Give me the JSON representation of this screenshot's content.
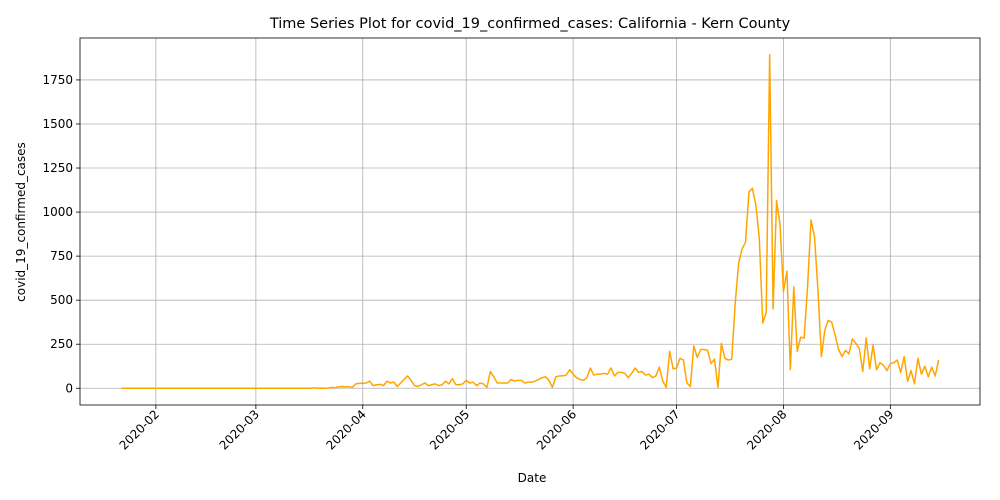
{
  "chart_data": {
    "type": "line",
    "title": "Time Series Plot for covid_19_confirmed_cases: California - Kern County",
    "x_label": "Date",
    "y_label": "covid_19_confirmed_cases",
    "x": [
      "2020-01-22",
      "2020-01-23",
      "2020-01-24",
      "2020-01-25",
      "2020-01-26",
      "2020-01-27",
      "2020-01-28",
      "2020-01-29",
      "2020-01-30",
      "2020-01-31",
      "2020-02-01",
      "2020-02-02",
      "2020-02-03",
      "2020-02-04",
      "2020-02-05",
      "2020-02-06",
      "2020-02-07",
      "2020-02-08",
      "2020-02-09",
      "2020-02-10",
      "2020-02-11",
      "2020-02-12",
      "2020-02-13",
      "2020-02-14",
      "2020-02-15",
      "2020-02-16",
      "2020-02-17",
      "2020-02-18",
      "2020-02-19",
      "2020-02-20",
      "2020-02-21",
      "2020-02-22",
      "2020-02-23",
      "2020-02-24",
      "2020-02-25",
      "2020-02-26",
      "2020-02-27",
      "2020-02-28",
      "2020-02-29",
      "2020-03-01",
      "2020-03-02",
      "2020-03-03",
      "2020-03-04",
      "2020-03-05",
      "2020-03-06",
      "2020-03-07",
      "2020-03-08",
      "2020-03-09",
      "2020-03-10",
      "2020-03-11",
      "2020-03-12",
      "2020-03-13",
      "2020-03-14",
      "2020-03-15",
      "2020-03-16",
      "2020-03-17",
      "2020-03-18",
      "2020-03-19",
      "2020-03-20",
      "2020-03-21",
      "2020-03-22",
      "2020-03-23",
      "2020-03-24",
      "2020-03-25",
      "2020-03-26",
      "2020-03-27",
      "2020-03-28",
      "2020-03-29",
      "2020-03-30",
      "2020-03-31",
      "2020-04-01",
      "2020-04-02",
      "2020-04-03",
      "2020-04-04",
      "2020-04-05",
      "2020-04-06",
      "2020-04-07",
      "2020-04-08",
      "2020-04-09",
      "2020-04-10",
      "2020-04-11",
      "2020-04-12",
      "2020-04-13",
      "2020-04-14",
      "2020-04-15",
      "2020-04-16",
      "2020-04-17",
      "2020-04-18",
      "2020-04-19",
      "2020-04-20",
      "2020-04-21",
      "2020-04-22",
      "2020-04-23",
      "2020-04-24",
      "2020-04-25",
      "2020-04-26",
      "2020-04-27",
      "2020-04-28",
      "2020-04-29",
      "2020-04-30",
      "2020-05-01",
      "2020-05-02",
      "2020-05-03",
      "2020-05-04",
      "2020-05-05",
      "2020-05-06",
      "2020-05-07",
      "2020-05-08",
      "2020-05-09",
      "2020-05-10",
      "2020-05-11",
      "2020-05-12",
      "2020-05-13",
      "2020-05-14",
      "2020-05-15",
      "2020-05-16",
      "2020-05-17",
      "2020-05-18",
      "2020-05-19",
      "2020-05-20",
      "2020-05-21",
      "2020-05-22",
      "2020-05-23",
      "2020-05-24",
      "2020-05-25",
      "2020-05-26",
      "2020-05-27",
      "2020-05-28",
      "2020-05-29",
      "2020-05-30",
      "2020-05-31",
      "2020-06-01",
      "2020-06-02",
      "2020-06-03",
      "2020-06-04",
      "2020-06-05",
      "2020-06-06",
      "2020-06-07",
      "2020-06-08",
      "2020-06-09",
      "2020-06-10",
      "2020-06-11",
      "2020-06-12",
      "2020-06-13",
      "2020-06-14",
      "2020-06-15",
      "2020-06-16",
      "2020-06-17",
      "2020-06-18",
      "2020-06-19",
      "2020-06-20",
      "2020-06-21",
      "2020-06-22",
      "2020-06-23",
      "2020-06-24",
      "2020-06-25",
      "2020-06-26",
      "2020-06-27",
      "2020-06-28",
      "2020-06-29",
      "2020-06-30",
      "2020-07-01",
      "2020-07-02",
      "2020-07-03",
      "2020-07-04",
      "2020-07-05",
      "2020-07-06",
      "2020-07-07",
      "2020-07-08",
      "2020-07-09",
      "2020-07-10",
      "2020-07-11",
      "2020-07-12",
      "2020-07-13",
      "2020-07-14",
      "2020-07-15",
      "2020-07-16",
      "2020-07-17",
      "2020-07-18",
      "2020-07-19",
      "2020-07-20",
      "2020-07-21",
      "2020-07-22",
      "2020-07-23",
      "2020-07-24",
      "2020-07-25",
      "2020-07-26",
      "2020-07-27",
      "2020-07-28",
      "2020-07-29",
      "2020-07-30",
      "2020-07-31",
      "2020-08-01",
      "2020-08-02",
      "2020-08-03",
      "2020-08-04",
      "2020-08-05",
      "2020-08-06",
      "2020-08-07",
      "2020-08-08",
      "2020-08-09",
      "2020-08-10",
      "2020-08-11",
      "2020-08-12",
      "2020-08-13",
      "2020-08-14",
      "2020-08-15",
      "2020-08-16",
      "2020-08-17",
      "2020-08-18",
      "2020-08-19",
      "2020-08-20",
      "2020-08-21",
      "2020-08-22",
      "2020-08-23",
      "2020-08-24",
      "2020-08-25",
      "2020-08-26",
      "2020-08-27",
      "2020-08-28",
      "2020-08-29",
      "2020-08-30",
      "2020-08-31",
      "2020-09-01",
      "2020-09-02",
      "2020-09-03",
      "2020-09-04",
      "2020-09-05",
      "2020-09-06",
      "2020-09-07",
      "2020-09-08",
      "2020-09-09",
      "2020-09-10",
      "2020-09-11",
      "2020-09-12",
      "2020-09-13",
      "2020-09-14",
      "2020-09-15"
    ],
    "values": [
      0,
      0,
      0,
      0,
      0,
      0,
      0,
      0,
      0,
      0,
      0,
      0,
      0,
      0,
      0,
      0,
      0,
      0,
      0,
      0,
      0,
      0,
      0,
      0,
      0,
      0,
      0,
      0,
      0,
      0,
      0,
      0,
      0,
      0,
      0,
      0,
      0,
      0,
      0,
      0,
      0,
      0,
      0,
      0,
      0,
      0,
      0,
      0,
      0,
      0,
      0,
      0,
      0,
      0,
      0,
      0,
      2,
      0,
      1,
      0,
      1,
      5,
      3,
      8,
      10,
      8,
      9,
      5,
      25,
      28,
      28,
      30,
      40,
      15,
      20,
      22,
      15,
      40,
      30,
      35,
      10,
      30,
      50,
      70,
      45,
      15,
      10,
      20,
      30,
      15,
      20,
      25,
      15,
      20,
      40,
      25,
      55,
      20,
      20,
      25,
      45,
      30,
      35,
      15,
      30,
      25,
      5,
      95,
      65,
      30,
      30,
      30,
      30,
      50,
      40,
      45,
      45,
      30,
      35,
      35,
      40,
      50,
      60,
      65,
      45,
      5,
      65,
      70,
      70,
      75,
      105,
      80,
      60,
      50,
      45,
      60,
      115,
      75,
      80,
      80,
      85,
      80,
      115,
      70,
      90,
      90,
      85,
      60,
      85,
      115,
      90,
      95,
      75,
      80,
      60,
      70,
      120,
      40,
      5,
      210,
      110,
      115,
      170,
      160,
      30,
      10,
      240,
      175,
      220,
      220,
      215,
      140,
      165,
      5,
      255,
      170,
      160,
      165,
      480,
      710,
      790,
      830,
      1115,
      1135,
      1040,
      850,
      370,
      430,
      1893,
      450,
      1065,
      930,
      550,
      665,
      105,
      575,
      210,
      290,
      285,
      580,
      955,
      860,
      560,
      180,
      330,
      385,
      375,
      300,
      220,
      180,
      215,
      195,
      280,
      255,
      225,
      95,
      285,
      110,
      245,
      105,
      145,
      130,
      100,
      140,
      145,
      160,
      90,
      180,
      40,
      100,
      25,
      170,
      80,
      125,
      65,
      120,
      70,
      160
    ],
    "color": "#ffa500",
    "xlim": [
      "2020-01-10",
      "2020-09-27"
    ],
    "xticks": [
      {
        "value": "2020-02-01",
        "label": "2020-02"
      },
      {
        "value": "2020-03-01",
        "label": "2020-03"
      },
      {
        "value": "2020-04-01",
        "label": "2020-04"
      },
      {
        "value": "2020-05-01",
        "label": "2020-05"
      },
      {
        "value": "2020-06-01",
        "label": "2020-06"
      },
      {
        "value": "2020-07-01",
        "label": "2020-07"
      },
      {
        "value": "2020-08-01",
        "label": "2020-08"
      },
      {
        "value": "2020-09-01",
        "label": "2020-09"
      }
    ],
    "ylim": [
      -95,
      1988
    ],
    "yticks": [
      0,
      250,
      500,
      750,
      1000,
      1250,
      1500,
      1750
    ],
    "grid": true
  }
}
